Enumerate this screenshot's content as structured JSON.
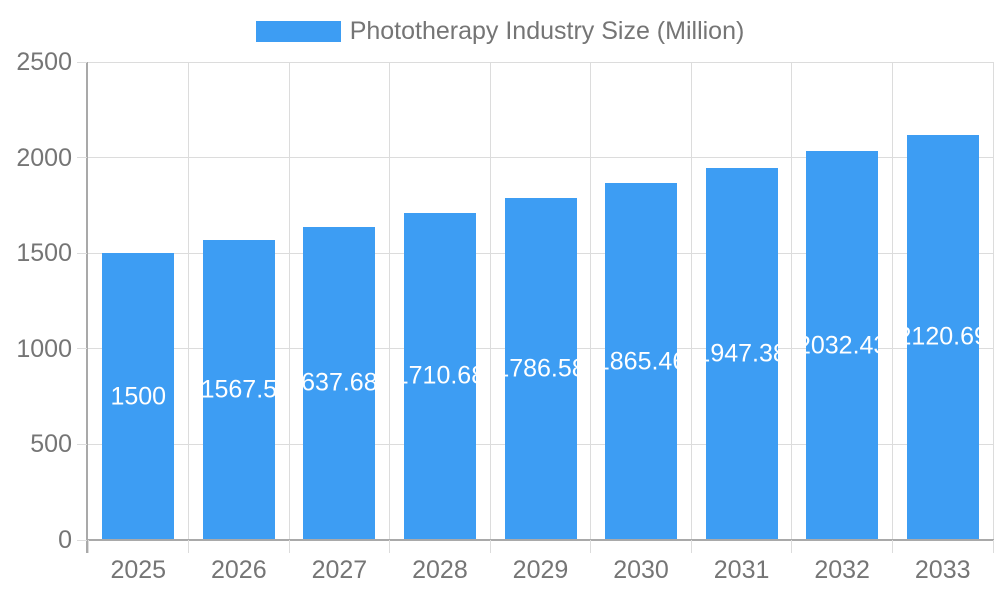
{
  "legend": {
    "label": "Phototherapy Industry Size (Million)"
  },
  "chart_data": {
    "type": "bar",
    "title": "Phototherapy Industry Size (Million)",
    "categories": [
      "2025",
      "2026",
      "2027",
      "2028",
      "2029",
      "2030",
      "2031",
      "2032",
      "2033"
    ],
    "values": [
      1500,
      1567.5,
      1637.687,
      1710.68,
      1786.58,
      1865.46,
      1947.38,
      2032.43,
      2120.69
    ],
    "bar_labels": [
      "1500",
      "1567.5",
      "1637.687",
      "1710.68",
      "1786.58",
      "1865.46",
      "1947.38",
      "2032.43",
      "2120.69"
    ],
    "xlabel": "",
    "ylabel": "",
    "ylim": [
      0,
      2500
    ],
    "yticks": [
      0,
      500,
      1000,
      1500,
      2000,
      2500
    ],
    "grid": true,
    "legend_position": "top",
    "colors": {
      "bar": "#3D9DF3",
      "bar_label_text": "#FFFFFF",
      "axis_text": "#757575",
      "gridline": "#DCDCDC",
      "axis_line": "#A9A9A9",
      "background": "#FFFFFF"
    }
  }
}
